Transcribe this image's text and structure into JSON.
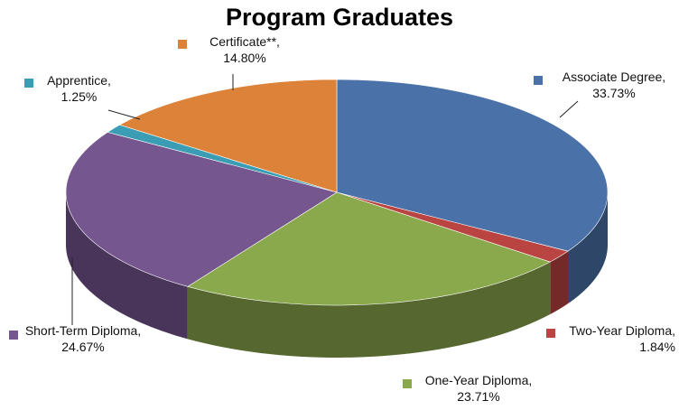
{
  "chart_data": {
    "type": "pie3d",
    "title": "Program Graduates",
    "categories": [
      "Associate Degree,",
      "Two-Year Diploma,",
      "One-Year Diploma,",
      "Short-Term Diploma,",
      "Apprentice,",
      "Certificate**,"
    ],
    "values": [
      33.73,
      1.84,
      23.71,
      24.67,
      1.25,
      14.8
    ],
    "value_labels": [
      "33.73%",
      "1.84%",
      "23.71%",
      "24.67%",
      "1.25%",
      "14.80%"
    ],
    "colors": [
      "#4a72a8",
      "#b94441",
      "#8aa84c",
      "#75568f",
      "#3b9db3",
      "#dd8339"
    ]
  }
}
